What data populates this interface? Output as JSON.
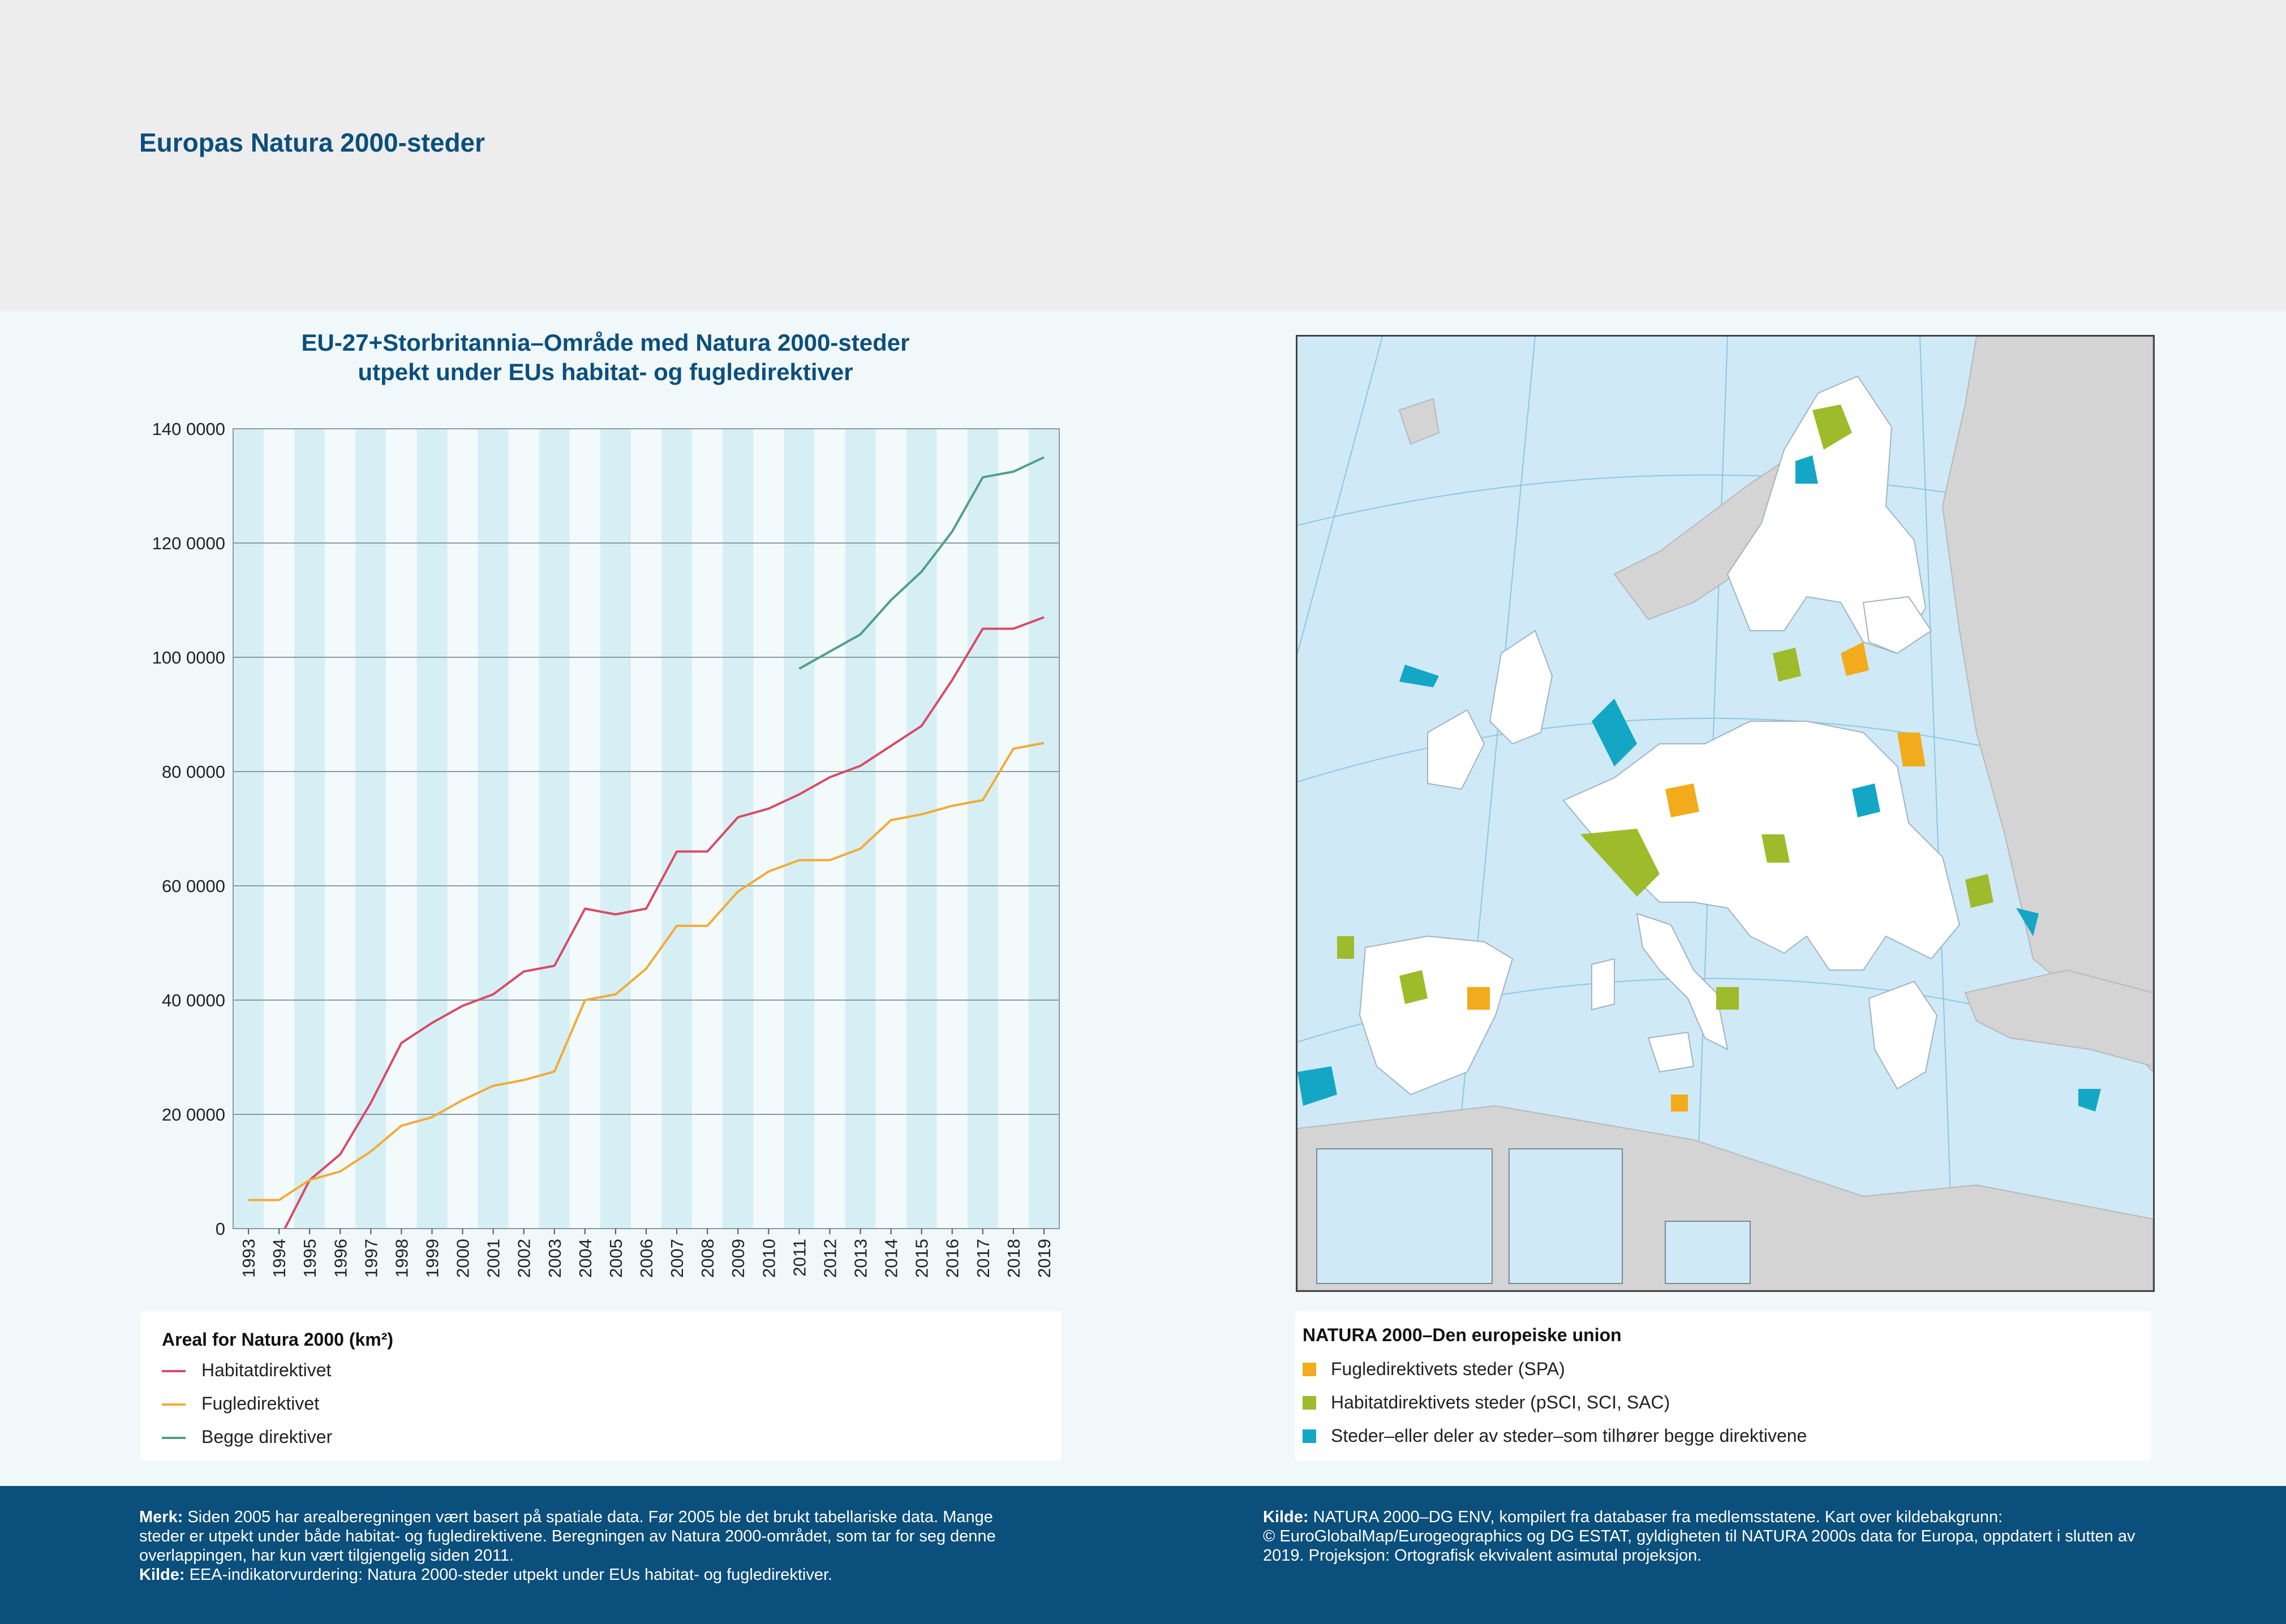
{
  "header": {
    "title": "Europas Natura 2000-steder"
  },
  "chart_data": {
    "type": "line",
    "title": "EU-27+Storbritannia–Område med Natura 2000-steder",
    "subtitle": "utpekt under EUs habitat- og fugledirektiver",
    "x": [
      1993,
      1994,
      1995,
      1996,
      1997,
      1998,
      1999,
      2000,
      2001,
      2002,
      2003,
      2004,
      2005,
      2006,
      2007,
      2008,
      2009,
      2010,
      2011,
      2012,
      2013,
      2014,
      2015,
      2016,
      2017,
      2018,
      2019
    ],
    "ylim": [
      0,
      140000
    ],
    "yticks": [
      0,
      20000,
      40000,
      60000,
      80000,
      100000,
      120000,
      140000
    ],
    "ytick_labels": [
      "0",
      "20 0000",
      "40 0000",
      "60 0000",
      "80 0000",
      "100 0000",
      "120 0000",
      "140 0000"
    ],
    "grid": "horizontal",
    "series": [
      {
        "name": "Habitatdirektivet",
        "color": "#d94a64",
        "values": [
          null,
          -2000,
          8500,
          13000,
          22000,
          32500,
          36000,
          39000,
          41000,
          45000,
          46000,
          56000,
          55000,
          56000,
          66000,
          66000,
          72000,
          73500,
          76000,
          79000,
          81000,
          84500,
          88000,
          96000,
          105000,
          105000,
          107000
        ]
      },
      {
        "name": "Fugledirektivet",
        "color": "#f2ab36",
        "values": [
          5000,
          5000,
          8500,
          10000,
          13500,
          18000,
          19500,
          22500,
          25000,
          26000,
          27500,
          40000,
          41000,
          45500,
          53000,
          53000,
          59000,
          62500,
          64500,
          64500,
          66500,
          71500,
          72500,
          74000,
          75000,
          84000,
          85000
        ]
      },
      {
        "name": "Begge direktiver",
        "color": "#4f9f85",
        "values": [
          null,
          null,
          null,
          null,
          null,
          null,
          null,
          null,
          null,
          null,
          null,
          null,
          null,
          null,
          null,
          null,
          null,
          null,
          98000,
          101000,
          104000,
          110000,
          115000,
          122000,
          131500,
          132500,
          135000
        ]
      }
    ]
  },
  "chart_legend": {
    "title": "Areal for Natura 2000 (km²)",
    "items": [
      "Habitatdirektivet",
      "Fugledirektivet",
      "Begge direktiver"
    ]
  },
  "map_legend": {
    "title": "NATURA 2000–Den europeiske union",
    "items": [
      {
        "label": "Fugledirektivets steder (SPA)",
        "color": "#f2ab1c"
      },
      {
        "label": "Habitatdirektivets steder (pSCI, SCI, SAC)",
        "color": "#9dbb2a"
      },
      {
        "label": "Steder–eller deler av steder–som tilhører begge direktivene",
        "color": "#13a7c5"
      }
    ]
  },
  "footer": {
    "note_label": "Merk:",
    "note_lines": [
      "Siden 2005 har arealberegningen vært basert på spatiale data. Før 2005 ble det brukt tabellariske data. Mange",
      "steder er utpekt under både habitat- og fugledirektivene. Beregningen av Natura 2000-området, som tar for seg denne",
      "overlappingen, har kun vært tilgjengelig siden 2011."
    ],
    "source1_label": "Kilde:",
    "source1_text": "EEA-indikatorvurdering: Natura 2000-steder utpekt under EUs habitat- og fugledirektiver.",
    "source2_label": "Kilde:",
    "source2_lines": [
      "NATURA 2000–DG ENV, kompilert fra databaser fra medlemsstatene. Kart over kildebakgrunn:",
      "© EuroGlobalMap/Eurogeographics og DG ESTAT, gyldigheten til NATURA 2000s data for Europa, oppdatert i slutten av",
      "2019. Projeksjon: Ortografisk ekvivalent asimutal projeksjon."
    ]
  }
}
